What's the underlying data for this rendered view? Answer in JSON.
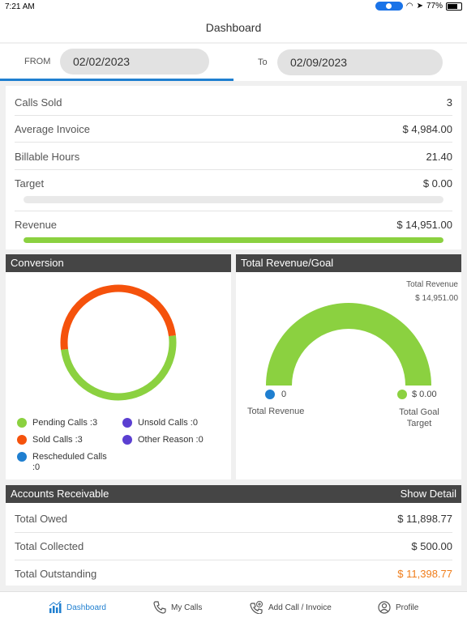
{
  "status": {
    "time": "7:21 AM",
    "battery": "77%"
  },
  "header": {
    "title": "Dashboard"
  },
  "dates": {
    "from_label": "FROM",
    "from_value": "02/02/2023",
    "to_label": "To",
    "to_value": "02/09/2023"
  },
  "summary": {
    "calls_sold_label": "Calls Sold",
    "calls_sold_value": "3",
    "avg_invoice_label": "Average Invoice",
    "avg_invoice_value": "$ 4,984.00",
    "billable_label": "Billable Hours",
    "billable_value": "21.40",
    "target_label": "Target",
    "target_value": "$ 0.00",
    "target_progress": 0,
    "revenue_label": "Revenue",
    "revenue_value": "$ 14,951.00",
    "revenue_progress": 1.0
  },
  "conversion": {
    "title": "Conversion",
    "legend": {
      "pending": "Pending Calls :3",
      "unsold": "Unsold Calls :0",
      "sold": "Sold Calls :3",
      "other": "Other Reason :0",
      "rescheduled": "Rescheduled Calls\n:0"
    },
    "colors": {
      "pending": "#8bd140",
      "sold": "#f5520c",
      "unsold": "#5b3fd1",
      "other": "#5b3fd1",
      "rescheduled": "#1f7fd0"
    }
  },
  "chart_data": {
    "type": "pie",
    "title": "Conversion",
    "categories": [
      "Pending Calls",
      "Sold Calls",
      "Unsold Calls",
      "Other Reason",
      "Rescheduled Calls"
    ],
    "values": [
      3,
      3,
      0,
      0,
      0
    ]
  },
  "revenue_goal": {
    "title": "Total Revenue/Goal",
    "caption_label": "Total Revenue",
    "caption_value": "$ 14,951.00",
    "left_value": "0",
    "right_value": "$ 0.00",
    "left_label": "Total Revenue",
    "right_label": "Total Goal\nTarget",
    "gauge_color": "#8bd140"
  },
  "ar": {
    "title": "Accounts Receivable",
    "detail_link": "Show Detail",
    "owed_label": "Total Owed",
    "owed_value": "$ 11,898.77",
    "collected_label": "Total Collected",
    "collected_value": "$ 500.00",
    "outstanding_label": "Total Outstanding",
    "outstanding_value": "$ 11,398.77",
    "outstanding_color": "#f07d1a"
  },
  "tabs": {
    "dashboard": "Dashboard",
    "my_calls": "My Calls",
    "add_call": "Add Call / Invoice",
    "profile": "Profile"
  }
}
